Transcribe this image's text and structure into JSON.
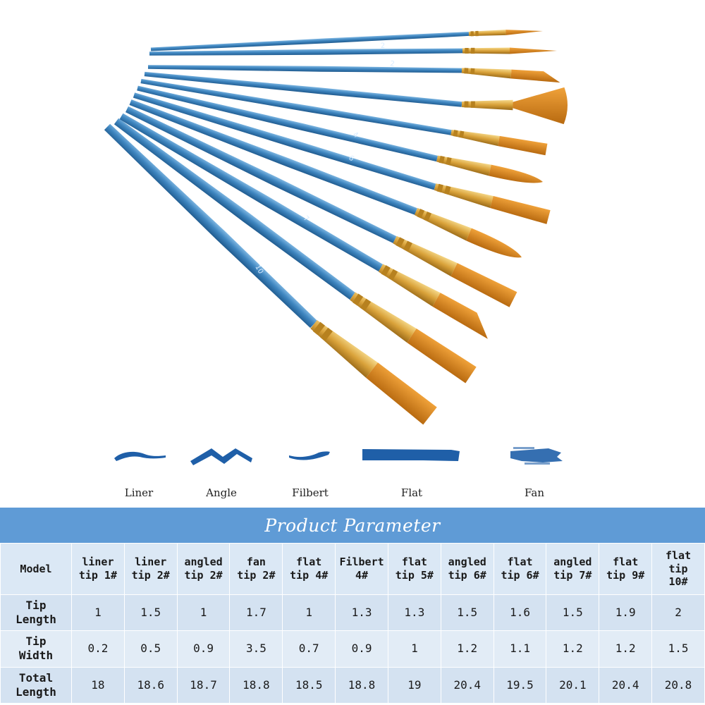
{
  "brush_numbers": [
    "2",
    "2",
    "10",
    "4",
    "6",
    "7"
  ],
  "stroke_samples": [
    {
      "label": "Liner"
    },
    {
      "label": "Angle"
    },
    {
      "label": "Filbert"
    },
    {
      "label": "Flat"
    },
    {
      "label": "Fan"
    }
  ],
  "colors": {
    "handle": "#3f86c0",
    "ferrule": "#d9a23a",
    "bristle": "#d9881f",
    "paint": "#1f5fa8",
    "banner": "#5f9bd6"
  },
  "table": {
    "title": "Product Parameter",
    "header_label": "Model",
    "models": [
      [
        "liner",
        "tip 1#"
      ],
      [
        "liner",
        "tip 2#"
      ],
      [
        "angled",
        "tip 2#"
      ],
      [
        "fan",
        "tip 2#"
      ],
      [
        "flat",
        "tip 4#"
      ],
      [
        "Filbert",
        "4#"
      ],
      [
        "flat",
        "tip 5#"
      ],
      [
        "angled",
        "tip 6#"
      ],
      [
        "flat",
        "tip 6#"
      ],
      [
        "angled",
        "tip 7#"
      ],
      [
        "flat",
        "tip 9#"
      ],
      [
        "flat",
        "tip",
        "10#"
      ]
    ],
    "rows": [
      {
        "label": [
          "Tip",
          "Length"
        ],
        "values": [
          "1",
          "1.5",
          "1",
          "1.7",
          "1",
          "1.3",
          "1.3",
          "1.5",
          "1.6",
          "1.5",
          "1.9",
          "2"
        ]
      },
      {
        "label": [
          "Tip",
          "Width"
        ],
        "values": [
          "0.2",
          "0.5",
          "0.9",
          "3.5",
          "0.7",
          "0.9",
          "1",
          "1.2",
          "1.1",
          "1.2",
          "1.2",
          "1.5"
        ]
      },
      {
        "label": [
          "Total",
          "Length"
        ],
        "values": [
          "18",
          "18.6",
          "18.7",
          "18.8",
          "18.5",
          "18.8",
          "19",
          "20.4",
          "19.5",
          "20.1",
          "20.4",
          "20.8"
        ]
      }
    ]
  }
}
